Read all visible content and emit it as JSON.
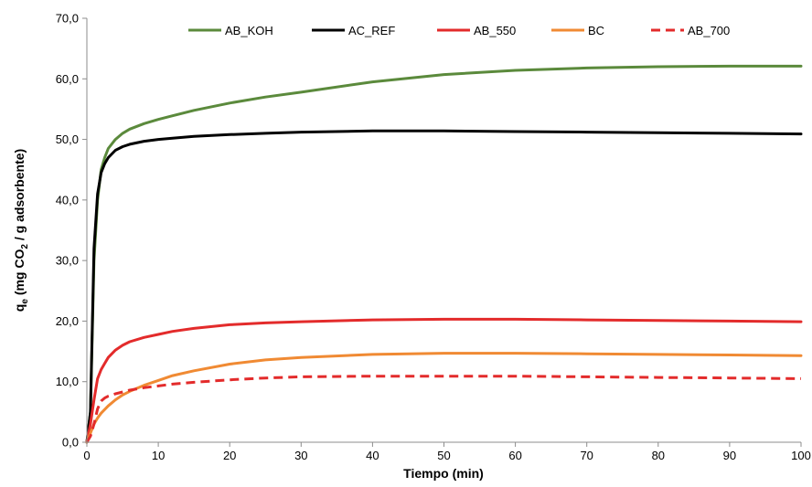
{
  "chart_data": {
    "type": "line",
    "xlabel": "Tiempo (min)",
    "ylabel": {
      "prefix_1": "q",
      "sub_1": "e",
      "middle": " (mg CO",
      "sub_2": "2",
      "suffix": " / g adsorbente)"
    },
    "xlim": [
      0,
      100
    ],
    "ylim": [
      0,
      70
    ],
    "x_ticks": [
      "0",
      "10",
      "20",
      "30",
      "40",
      "50",
      "60",
      "70",
      "80",
      "90",
      "100"
    ],
    "y_ticks": [
      "0,0",
      "10,0",
      "20,0",
      "30,0",
      "40,0",
      "50,0",
      "60,0",
      "70,0"
    ],
    "grid": false,
    "legend_position": "top",
    "series": [
      {
        "name": "AB_KOH",
        "color": "#5b8a3c",
        "dashed": false,
        "x": [
          0,
          0.5,
          1,
          1.5,
          2,
          2.5,
          3,
          4,
          5,
          6,
          8,
          10,
          12,
          15,
          20,
          25,
          30,
          40,
          50,
          60,
          70,
          80,
          90,
          100
        ],
        "y": [
          0,
          5,
          30,
          40,
          45,
          47,
          48.5,
          50,
          51,
          51.7,
          52.6,
          53.3,
          53.9,
          54.8,
          56,
          57,
          57.8,
          59.5,
          60.7,
          61.4,
          61.8,
          62,
          62.1,
          62.1
        ]
      },
      {
        "name": "AC_REF",
        "color": "#000000",
        "dashed": false,
        "x": [
          0,
          0.5,
          1,
          1.5,
          2,
          2.5,
          3,
          4,
          5,
          6,
          8,
          10,
          12,
          15,
          20,
          25,
          30,
          40,
          50,
          60,
          70,
          80,
          90,
          100
        ],
        "y": [
          0,
          5,
          32,
          41,
          44.5,
          46,
          47,
          48.2,
          48.8,
          49.2,
          49.7,
          50,
          50.2,
          50.5,
          50.8,
          51,
          51.2,
          51.4,
          51.4,
          51.3,
          51.2,
          51.1,
          51,
          50.9
        ]
      },
      {
        "name": "AB_550",
        "color": "#e32b2b",
        "dashed": false,
        "x": [
          0,
          0.5,
          1,
          1.5,
          2,
          2.5,
          3,
          4,
          5,
          6,
          8,
          10,
          12,
          15,
          20,
          25,
          30,
          40,
          50,
          60,
          70,
          80,
          90,
          100
        ],
        "y": [
          0,
          3,
          7,
          10.5,
          12,
          13,
          14,
          15.2,
          16,
          16.6,
          17.3,
          17.8,
          18.3,
          18.8,
          19.4,
          19.7,
          19.9,
          20.2,
          20.3,
          20.3,
          20.2,
          20.1,
          20,
          19.9
        ]
      },
      {
        "name": "BC",
        "color": "#f08a33",
        "dashed": false,
        "x": [
          0,
          0.5,
          1,
          1.5,
          2,
          2.5,
          3,
          4,
          5,
          6,
          8,
          10,
          12,
          15,
          20,
          25,
          30,
          40,
          50,
          60,
          70,
          80,
          90,
          100
        ],
        "y": [
          0,
          1.5,
          3,
          4,
          4.8,
          5.4,
          6,
          7,
          7.8,
          8.4,
          9.4,
          10.2,
          11,
          11.8,
          12.9,
          13.6,
          14,
          14.5,
          14.7,
          14.7,
          14.6,
          14.5,
          14.4,
          14.3
        ]
      },
      {
        "name": "AB_700",
        "color": "#e32b2b",
        "dashed": true,
        "x": [
          0,
          0.5,
          1,
          1.5,
          2,
          2.5,
          3,
          4,
          5,
          6,
          8,
          10,
          12,
          15,
          20,
          25,
          30,
          40,
          50,
          60,
          70,
          80,
          90,
          100
        ],
        "y": [
          0,
          1,
          3,
          5.5,
          6.8,
          7.3,
          7.6,
          8,
          8.3,
          8.6,
          9,
          9.3,
          9.6,
          9.9,
          10.3,
          10.6,
          10.8,
          10.9,
          10.9,
          10.9,
          10.8,
          10.7,
          10.6,
          10.5
        ]
      }
    ]
  }
}
